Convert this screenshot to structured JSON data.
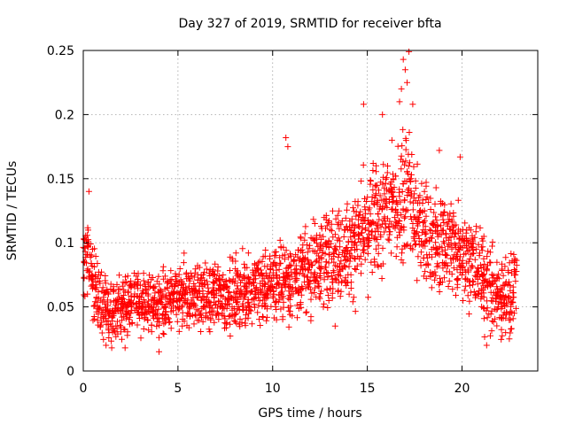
{
  "chart_data": {
    "type": "scatter",
    "title": "Day 327 of 2019, SRMTID for receiver bfta",
    "xlabel": "GPS time / hours",
    "ylabel": "SRMTID / TECUs",
    "xlim": [
      0,
      24
    ],
    "ylim": [
      0,
      0.25
    ],
    "x_ticks": [
      0,
      5,
      10,
      15,
      20
    ],
    "y_ticks": [
      0,
      0.05,
      0.1,
      0.15,
      0.2,
      0.25
    ],
    "x_tick_labels": [
      "0",
      "5",
      "10",
      "15",
      "20"
    ],
    "y_tick_labels": [
      "0",
      "0.05",
      "0.1",
      "0.15",
      "0.2",
      "0.25"
    ],
    "grid": true,
    "marker": "+",
    "color": "#ff0000",
    "series": [
      {
        "name": "SRMTID",
        "sampling_interval_hours": 0.2,
        "x_start": 0,
        "points_per_sample": 20,
        "trend": [
          [
            0.0,
            0.085
          ],
          [
            0.2,
            0.095
          ],
          [
            0.5,
            0.07
          ],
          [
            1.0,
            0.048
          ],
          [
            1.5,
            0.045
          ],
          [
            2.0,
            0.05
          ],
          [
            3.0,
            0.055
          ],
          [
            4.0,
            0.052
          ],
          [
            5.0,
            0.055
          ],
          [
            6.0,
            0.06
          ],
          [
            7.0,
            0.058
          ],
          [
            8.0,
            0.06
          ],
          [
            9.0,
            0.063
          ],
          [
            10.0,
            0.068
          ],
          [
            11.0,
            0.072
          ],
          [
            12.0,
            0.08
          ],
          [
            13.0,
            0.09
          ],
          [
            14.0,
            0.095
          ],
          [
            15.0,
            0.11
          ],
          [
            15.5,
            0.12
          ],
          [
            16.0,
            0.12
          ],
          [
            16.5,
            0.13
          ],
          [
            17.0,
            0.145
          ],
          [
            17.3,
            0.14
          ],
          [
            17.5,
            0.12
          ],
          [
            18.0,
            0.105
          ],
          [
            19.0,
            0.1
          ],
          [
            20.0,
            0.095
          ],
          [
            21.0,
            0.075
          ],
          [
            22.0,
            0.055
          ],
          [
            22.5,
            0.06
          ],
          [
            22.9,
            0.075
          ]
        ],
        "spread": [
          [
            0.0,
            0.035
          ],
          [
            2.0,
            0.025
          ],
          [
            10.0,
            0.03
          ],
          [
            14.0,
            0.04
          ],
          [
            16.0,
            0.05
          ],
          [
            17.0,
            0.06
          ],
          [
            18.0,
            0.045
          ],
          [
            20.0,
            0.04
          ],
          [
            22.0,
            0.035
          ],
          [
            22.9,
            0.04
          ]
        ],
        "notable_points": [
          [
            17.2,
            0.249
          ],
          [
            16.9,
            0.243
          ],
          [
            17.0,
            0.235
          ],
          [
            16.8,
            0.22
          ],
          [
            17.1,
            0.225
          ],
          [
            16.7,
            0.21
          ],
          [
            17.4,
            0.208
          ],
          [
            14.8,
            0.208
          ],
          [
            15.8,
            0.2
          ],
          [
            16.3,
            0.18
          ],
          [
            10.7,
            0.182
          ],
          [
            10.8,
            0.175
          ],
          [
            18.8,
            0.172
          ],
          [
            19.9,
            0.167
          ],
          [
            0.3,
            0.14
          ],
          [
            4.0,
            0.015
          ],
          [
            1.2,
            0.02
          ],
          [
            13.3,
            0.035
          ],
          [
            22.5,
            0.025
          ],
          [
            22.3,
            0.03
          ],
          [
            21.3,
            0.02
          ]
        ]
      }
    ]
  }
}
